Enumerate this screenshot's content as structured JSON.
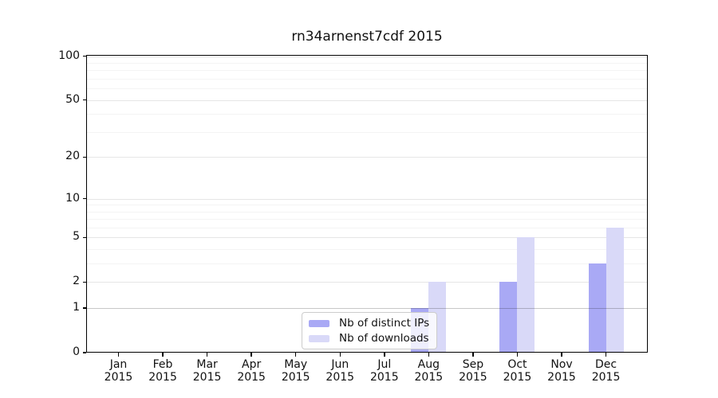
{
  "title": "rn34arnenst7cdf 2015",
  "colors": {
    "background": "#ffffff",
    "axis": "#000000",
    "grid_major": "#e6e6e6",
    "grid_minor": "#f4f4f4",
    "unit_gridline": "rgba(0,0,0,0.22)",
    "tick_text": "#111111",
    "legend_border": "#cccccc",
    "legend_background": "rgba(255,255,255,0.8)"
  },
  "chart_data": {
    "type": "bar",
    "title": "rn34arnenst7cdf 2015",
    "categories": [
      {
        "month": "Jan",
        "year": "2015"
      },
      {
        "month": "Feb",
        "year": "2015"
      },
      {
        "month": "Mar",
        "year": "2015"
      },
      {
        "month": "Apr",
        "year": "2015"
      },
      {
        "month": "May",
        "year": "2015"
      },
      {
        "month": "Jun",
        "year": "2015"
      },
      {
        "month": "Jul",
        "year": "2015"
      },
      {
        "month": "Aug",
        "year": "2015"
      },
      {
        "month": "Sep",
        "year": "2015"
      },
      {
        "month": "Oct",
        "year": "2015"
      },
      {
        "month": "Nov",
        "year": "2015"
      },
      {
        "month": "Dec",
        "year": "2015"
      }
    ],
    "series": [
      {
        "name": "Nb of distinct IPs",
        "color": "#a9a9f5",
        "values": [
          0,
          0,
          0,
          0,
          0,
          0,
          0,
          1,
          0,
          2,
          0,
          3
        ]
      },
      {
        "name": "Nb of downloads",
        "color": "#d9d9f8",
        "values": [
          0,
          0,
          0,
          0,
          0,
          0,
          0,
          2,
          0,
          5,
          0,
          6
        ]
      }
    ],
    "xlabel": "",
    "ylabel": "",
    "y_scale": "log10(1+x)",
    "ylim": [
      0,
      102
    ],
    "y_ticks": [
      0,
      1,
      2,
      5,
      10,
      20,
      50,
      100
    ],
    "y_minor_gridlines": [
      3,
      4,
      6,
      7,
      8,
      9,
      30,
      40,
      60,
      70,
      80,
      90
    ],
    "grid": true,
    "legend_position": "lower center (inside plot)"
  }
}
